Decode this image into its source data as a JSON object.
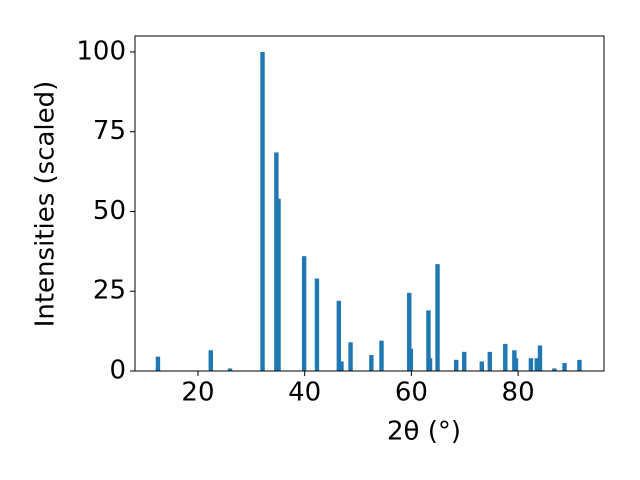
{
  "chart_data": {
    "type": "bar",
    "x_label": "2θ (°)",
    "y_label": "Intensities (scaled)",
    "x": [
      12.5,
      22.4,
      26.0,
      32.1,
      34.7,
      35.1,
      39.9,
      42.3,
      46.4,
      46.9,
      48.6,
      52.5,
      54.4,
      59.6,
      59.9,
      63.2,
      63.5,
      64.9,
      68.4,
      69.9,
      73.2,
      74.7,
      77.6,
      79.3,
      79.6,
      82.4,
      83.5,
      84.1,
      86.8,
      88.7,
      91.5
    ],
    "values": [
      4.5,
      6.5,
      0.8,
      100,
      68.5,
      54,
      36,
      29,
      22,
      3,
      9,
      5,
      9.5,
      24.5,
      7,
      19,
      4,
      33.5,
      3.5,
      6,
      3,
      6,
      8.5,
      6.5,
      4,
      4,
      4,
      8,
      0.8,
      2.5,
      3.5
    ],
    "color": "#1f77b4",
    "xlim": [
      8.2,
      96.1
    ],
    "ylim": [
      0,
      105
    ],
    "xticks": [
      20,
      40,
      60,
      80
    ],
    "yticks": [
      0,
      25,
      50,
      75,
      100
    ]
  }
}
